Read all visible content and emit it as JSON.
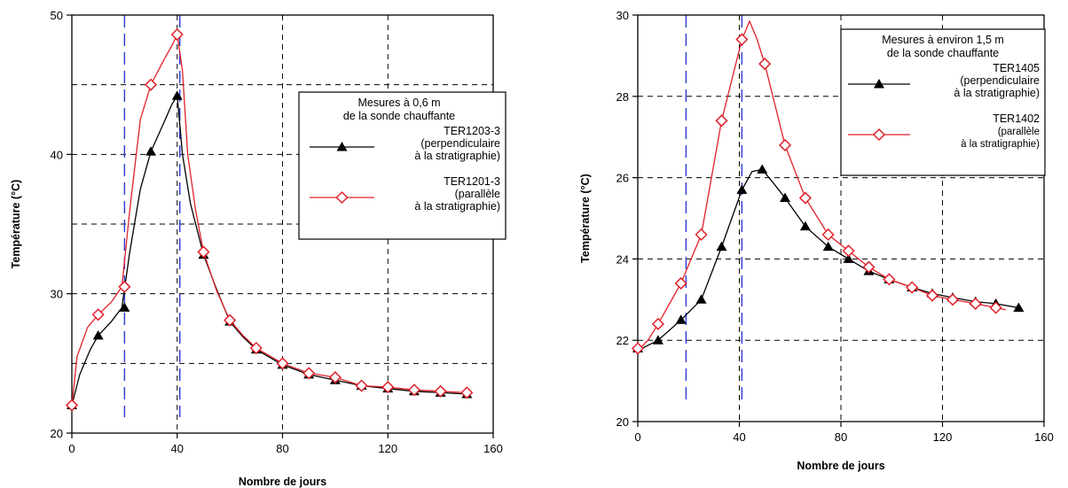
{
  "chart_data": [
    {
      "type": "line",
      "xlabel": "Nombre de jours",
      "ylabel": "Température (°C)",
      "xlim": [
        0,
        160
      ],
      "ylim": [
        20,
        50
      ],
      "xticks": [
        "0",
        "40",
        "80",
        "120",
        "160"
      ],
      "yticks": [
        "20",
        "30",
        "40",
        "50"
      ],
      "grid": true,
      "vlines_blue": [
        20,
        41
      ],
      "legend": {
        "placement": "right",
        "header": [
          "Mesures à 0,6 m",
          "de la sonde chauffante"
        ],
        "entries": [
          {
            "lines": [
              "TER1203-3",
              "(perpendiculaire",
              "à la stratigraphie)"
            ],
            "series": 0
          },
          {
            "lines": [
              "TER1201-3",
              "(parallèle",
              "à la stratigraphie)"
            ],
            "series": 1
          }
        ]
      },
      "series": [
        {
          "color": "#000000",
          "marker": "triangle",
          "x": [
            0,
            10,
            20,
            30,
            40,
            50,
            60,
            70,
            80,
            90,
            100,
            110,
            120,
            130,
            140,
            150
          ],
          "y": [
            22,
            27,
            29,
            40.2,
            44.2,
            32.8,
            28,
            26,
            24.9,
            24.2,
            23.8,
            23.4,
            23.2,
            23.0,
            22.9,
            22.8
          ],
          "curve": [
            [
              0,
              22
            ],
            [
              3,
              24.2
            ],
            [
              7,
              26
            ],
            [
              10,
              27
            ],
            [
              15,
              28
            ],
            [
              19,
              29
            ],
            [
              22,
              33
            ],
            [
              26,
              37.5
            ],
            [
              30,
              40.2
            ],
            [
              35,
              42.3
            ],
            [
              38,
              43.6
            ],
            [
              40,
              44.2
            ],
            [
              42,
              40
            ],
            [
              45,
              36.5
            ],
            [
              50,
              32.8
            ],
            [
              55,
              30.3
            ],
            [
              60,
              28
            ],
            [
              65,
              26.9
            ],
            [
              70,
              26
            ],
            [
              80,
              24.9
            ],
            [
              90,
              24.2
            ],
            [
              100,
              23.8
            ],
            [
              110,
              23.4
            ],
            [
              120,
              23.2
            ],
            [
              130,
              23.0
            ],
            [
              140,
              22.9
            ],
            [
              150,
              22.8
            ]
          ]
        },
        {
          "color": "#e0202a",
          "marker": "diamond",
          "x": [
            0,
            10,
            20,
            30,
            40,
            50,
            60,
            70,
            80,
            90,
            100,
            110,
            120,
            130,
            140,
            150
          ],
          "y": [
            22,
            28.5,
            30.5,
            45,
            48.6,
            33,
            28.1,
            26.1,
            25,
            24.3,
            24,
            23.4,
            23.3,
            23.1,
            23.0,
            22.9
          ],
          "curve": [
            [
              0,
              22
            ],
            [
              2,
              25.5
            ],
            [
              6,
              27.6
            ],
            [
              10,
              28.5
            ],
            [
              15,
              29.4
            ],
            [
              19,
              30.5
            ],
            [
              22,
              36
            ],
            [
              26,
              42.5
            ],
            [
              30,
              45
            ],
            [
              35,
              46.8
            ],
            [
              38,
              47.8
            ],
            [
              40,
              48.6
            ],
            [
              42,
              46
            ],
            [
              44,
              40
            ],
            [
              47,
              36
            ],
            [
              50,
              33
            ],
            [
              55,
              30.2
            ],
            [
              60,
              28.1
            ],
            [
              65,
              27
            ],
            [
              70,
              26.1
            ],
            [
              80,
              25
            ],
            [
              90,
              24.3
            ],
            [
              100,
              24
            ],
            [
              110,
              23.4
            ],
            [
              120,
              23.3
            ],
            [
              130,
              23.1
            ],
            [
              140,
              23.0
            ],
            [
              150,
              22.9
            ]
          ]
        }
      ]
    },
    {
      "type": "line",
      "xlabel": "Nombre de jours",
      "ylabel": "Température (°C)",
      "xlim": [
        0,
        160
      ],
      "ylim": [
        20,
        30
      ],
      "xticks": [
        "0",
        "40",
        "80",
        "120",
        "160"
      ],
      "yticks": [
        "20",
        "22",
        "24",
        "26",
        "28",
        "30"
      ],
      "grid": true,
      "vlines_blue": [
        19,
        41
      ],
      "legend": {
        "placement": "top-right",
        "header": [
          "Mesures à environ 1,5 m",
          "de la sonde chauffante"
        ],
        "entries": [
          {
            "lines": [
              "TER1405",
              "(perpendiculaire",
              "à la stratigraphie)"
            ],
            "series": 0
          },
          {
            "lines": [
              "TER1402",
              "(parallèle",
              "à la stratigraphie)"
            ],
            "series": 1
          }
        ]
      },
      "series": [
        {
          "color": "#000000",
          "marker": "triangle",
          "x": [
            0,
            8,
            17,
            25,
            33,
            41,
            49,
            58,
            66,
            75,
            83,
            91,
            99,
            108,
            116,
            124,
            133,
            141,
            150
          ],
          "y": [
            21.8,
            22.0,
            22.5,
            23.0,
            24.3,
            25.7,
            26.2,
            25.5,
            24.8,
            24.3,
            24.0,
            23.7,
            23.5,
            23.3,
            23.15,
            23.05,
            22.95,
            22.9,
            22.8
          ],
          "curve": [
            [
              0,
              21.75
            ],
            [
              8,
              22.0
            ],
            [
              17,
              22.5
            ],
            [
              25,
              23.0
            ],
            [
              33,
              24.3
            ],
            [
              41,
              25.7
            ],
            [
              45,
              26.15
            ],
            [
              49,
              26.2
            ],
            [
              53,
              25.9
            ],
            [
              58,
              25.5
            ],
            [
              66,
              24.8
            ],
            [
              75,
              24.3
            ],
            [
              83,
              24.0
            ],
            [
              91,
              23.7
            ],
            [
              99,
              23.5
            ],
            [
              108,
              23.3
            ],
            [
              116,
              23.15
            ],
            [
              124,
              23.05
            ],
            [
              133,
              22.95
            ],
            [
              141,
              22.9
            ],
            [
              150,
              22.8
            ]
          ]
        },
        {
          "color": "#e0202a",
          "marker": "diamond",
          "x": [
            0,
            8,
            17,
            25,
            33,
            41,
            50,
            58,
            66,
            75,
            83,
            91,
            99,
            108,
            116,
            124,
            133,
            141
          ],
          "y": [
            21.8,
            22.4,
            23.4,
            24.6,
            27.4,
            29.4,
            28.8,
            26.8,
            25.5,
            24.6,
            24.2,
            23.8,
            23.5,
            23.3,
            23.1,
            23.0,
            22.9,
            22.8
          ],
          "curve": [
            [
              0,
              21.75
            ],
            [
              4,
              22.0
            ],
            [
              8,
              22.4
            ],
            [
              17,
              23.4
            ],
            [
              25,
              24.6
            ],
            [
              33,
              27.4
            ],
            [
              41,
              29.4
            ],
            [
              44,
              29.85
            ],
            [
              47,
              29.4
            ],
            [
              50,
              28.8
            ],
            [
              54,
              27.8
            ],
            [
              58,
              26.8
            ],
            [
              66,
              25.5
            ],
            [
              75,
              24.6
            ],
            [
              83,
              24.2
            ],
            [
              91,
              23.8
            ],
            [
              99,
              23.5
            ],
            [
              108,
              23.3
            ],
            [
              116,
              23.1
            ],
            [
              124,
              23.0
            ],
            [
              133,
              22.9
            ],
            [
              141,
              22.8
            ],
            [
              145,
              22.75
            ]
          ]
        }
      ]
    }
  ]
}
